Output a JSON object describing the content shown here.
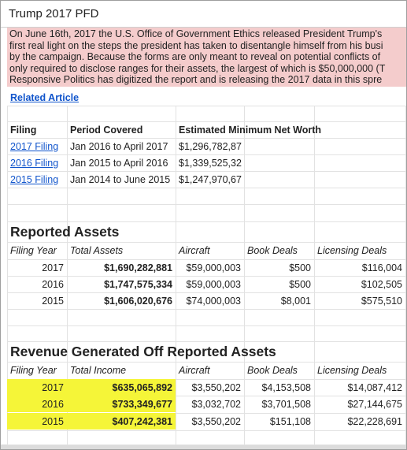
{
  "header": {
    "title": "Trump 2017 PFD"
  },
  "intro": {
    "lines": [
      "On June 16th, 2017 the U.S. Office of Government Ethics released President Trump's",
      "first real light on the steps the president has taken to disentangle himself from his busi",
      "by the campaign. Because the forms are only meant to reveal on potential conflicts of",
      "only required to disclose ranges for their assets, the largest of which is $50,000,000 (T",
      "Responsive Politics has digitized the report and is releasing the 2017 data in this spre"
    ],
    "link": "Related Article"
  },
  "filings": {
    "headers": [
      "Filing",
      "Period Covered",
      "Estimated Minimum Net Worth"
    ],
    "rows": [
      [
        "2017 Filing",
        "Jan 2016 to April 2017",
        "$1,296,782,87"
      ],
      [
        "2016 Filing",
        "Jan 2015 to April 2016",
        "$1,339,525,32"
      ],
      [
        "2015 Filing",
        "Jan 2014 to June 2015",
        "$1,247,970,67"
      ]
    ]
  },
  "assets": {
    "title": "Reported Assets",
    "headers": [
      "Filing Year",
      "Total Assets",
      "Aircraft",
      "Book Deals",
      "Licensing Deals"
    ],
    "rows": [
      [
        "2017",
        "$1,690,282,881",
        "$59,000,003",
        "$500",
        "$116,004"
      ],
      [
        "2016",
        "$1,747,575,334",
        "$59,000,003",
        "$500",
        "$102,505"
      ],
      [
        "2015",
        "$1,606,020,676",
        "$74,000,003",
        "$8,001",
        "$575,510"
      ]
    ]
  },
  "revenue": {
    "title": "Revenue Generated Off Reported Assets",
    "headers": [
      "Filing Year",
      "Total Income",
      "Aircraft",
      "Book Deals",
      "Licensing Deals"
    ],
    "rows": [
      [
        "2017",
        "$635,065,892",
        "$3,550,202",
        "$4,153,508",
        "$14,087,412"
      ],
      [
        "2016",
        "$733,349,677",
        "$3,032,702",
        "$3,701,508",
        "$27,144,675"
      ],
      [
        "2015",
        "$407,242,381",
        "$3,550,202",
        "$151,108",
        "$22,228,691"
      ]
    ]
  }
}
